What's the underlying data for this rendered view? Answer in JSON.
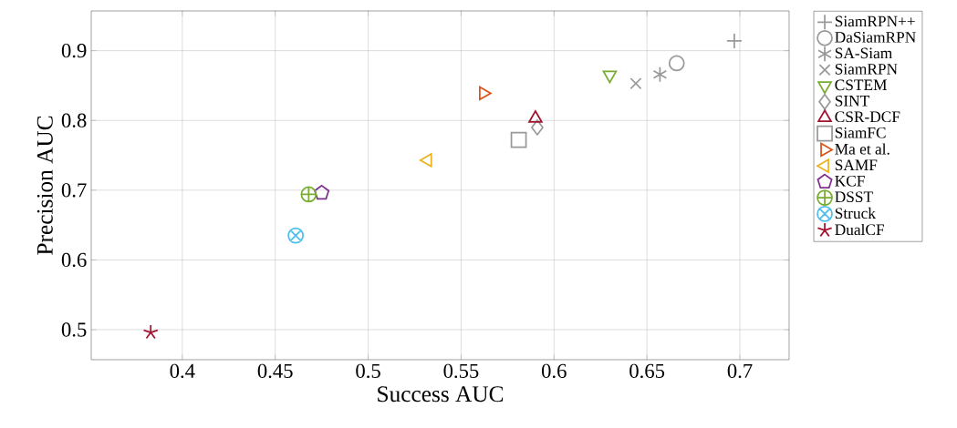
{
  "chart_data": {
    "type": "scatter",
    "xlabel": "Success AUC",
    "ylabel": "Precision AUC",
    "xlim": [
      0.351,
      0.7265
    ],
    "ylim": [
      0.457,
      0.957
    ],
    "xticks": [
      0.4,
      0.45,
      0.5,
      0.55,
      0.6,
      0.65,
      0.7
    ],
    "yticks": [
      0.5,
      0.6,
      0.7,
      0.8,
      0.9
    ],
    "grid": true,
    "legend": "right",
    "series": [
      {
        "name": "SiamRPN++",
        "color": "#999999",
        "marker": "plus",
        "x": [
          0.697
        ],
        "values": [
          0.914
        ]
      },
      {
        "name": "DaSiamRPN",
        "color": "#999999",
        "marker": "circle",
        "x": [
          0.666
        ],
        "values": [
          0.882
        ]
      },
      {
        "name": "SA-Siam",
        "color": "#999999",
        "marker": "cross-asterisk",
        "x": [
          0.657
        ],
        "values": [
          0.866
        ]
      },
      {
        "name": "SiamRPN",
        "color": "#999999",
        "marker": "cross",
        "x": [
          0.644
        ],
        "values": [
          0.853
        ]
      },
      {
        "name": "CSTEM",
        "color": "#77ac30",
        "marker": "triangle-down",
        "x": [
          0.63
        ],
        "values": [
          0.865
        ]
      },
      {
        "name": "SINT",
        "color": "#999999",
        "marker": "diamond",
        "x": [
          0.591
        ],
        "values": [
          0.79
        ]
      },
      {
        "name": "CSR-DCF",
        "color": "#a2142f",
        "marker": "triangle",
        "x": [
          0.59
        ],
        "values": [
          0.803
        ]
      },
      {
        "name": "SiamFC",
        "color": "#999999",
        "marker": "square",
        "x": [
          0.581
        ],
        "values": [
          0.772
        ]
      },
      {
        "name": "Ma et al.",
        "color": "#d95319",
        "marker": "triangle-right",
        "x": [
          0.562
        ],
        "values": [
          0.839
        ]
      },
      {
        "name": "SAMF",
        "color": "#edb120",
        "marker": "triangle-left",
        "x": [
          0.532
        ],
        "values": [
          0.743
        ]
      },
      {
        "name": "KCF",
        "color": "#7e2f8e",
        "x": [
          0.475
        ],
        "values": [
          0.696
        ]
      },
      {
        "name": "DSST",
        "color": "#77ac30",
        "marker": "cross-oplus",
        "x": [
          0.468
        ],
        "values": [
          0.694
        ]
      },
      {
        "name": "Struck",
        "color": "#4dbeee",
        "marker": "cross-otimes",
        "x": [
          0.461
        ],
        "values": [
          0.635
        ]
      },
      {
        "name": "DualCF",
        "color": "#a2142f",
        "marker": "cross-star",
        "x": [
          0.383
        ],
        "values": [
          0.496
        ]
      }
    ]
  }
}
